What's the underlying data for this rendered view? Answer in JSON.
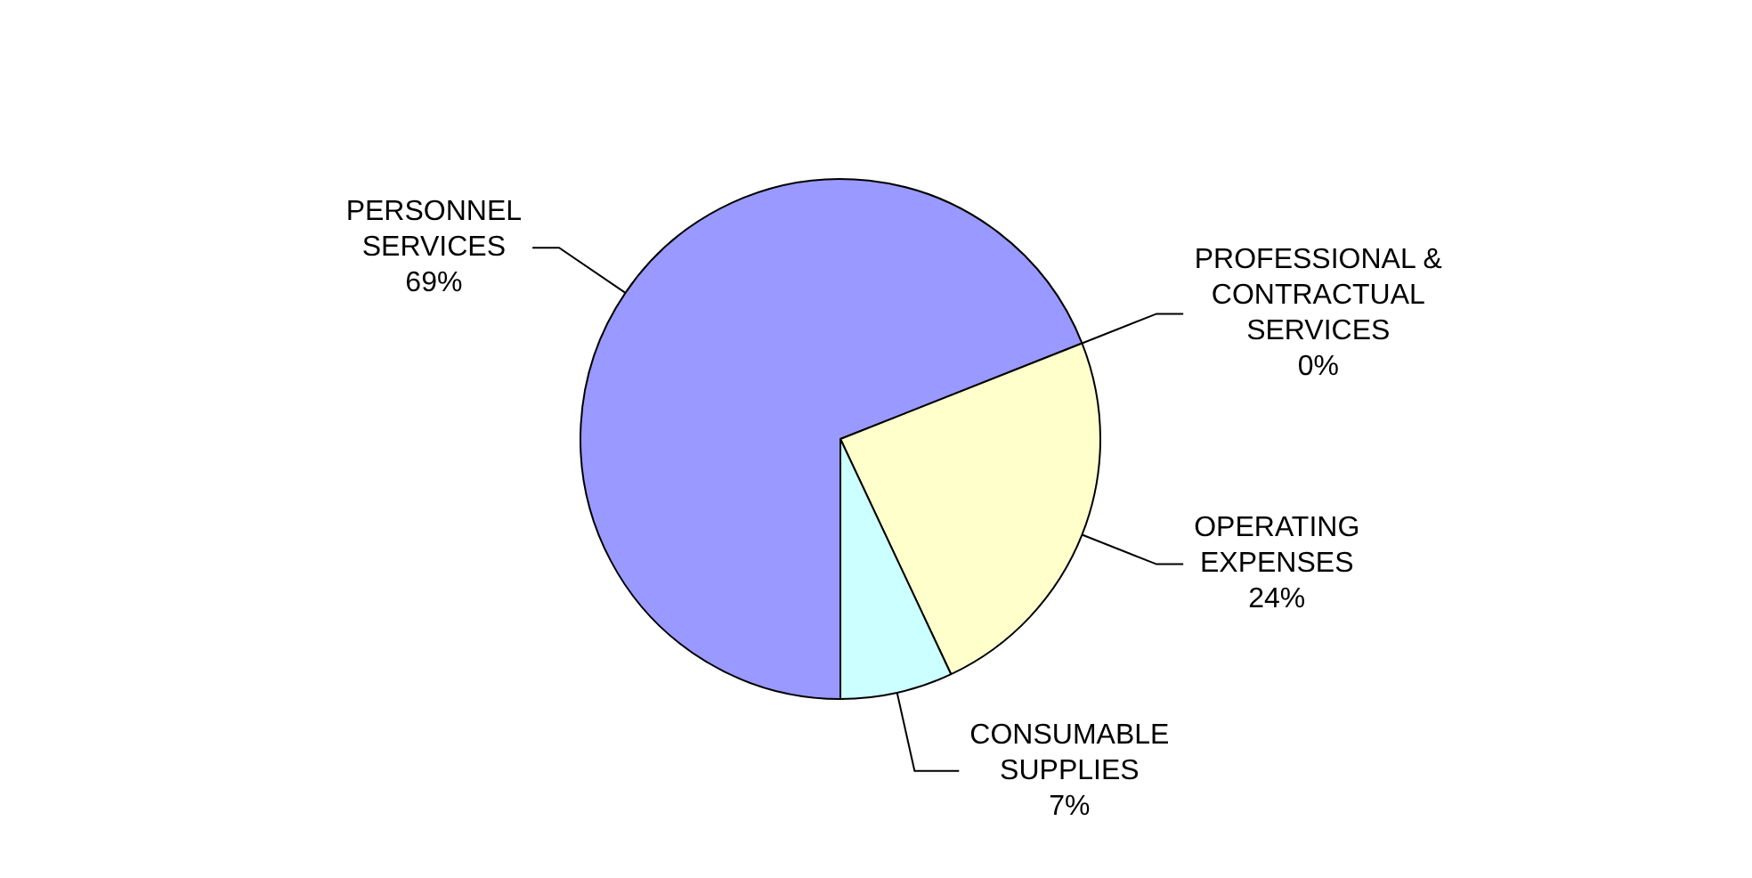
{
  "chart_data": {
    "type": "pie",
    "categories": [
      "PERSONNEL SERVICES",
      "PROFESSIONAL & CONTRACTUAL SERVICES",
      "OPERATING EXPENSES",
      "CONSUMABLE SUPPLIES"
    ],
    "values": [
      69,
      0,
      24,
      7
    ],
    "colors": [
      "#9999ff",
      "#993366",
      "#ffffcc",
      "#ccffff"
    ],
    "value_labels": [
      "69%",
      "0%",
      "24%",
      "7%"
    ],
    "legend": false
  }
}
